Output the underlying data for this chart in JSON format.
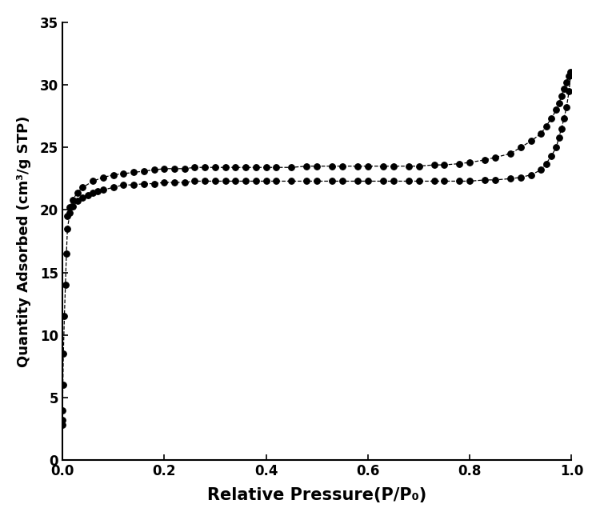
{
  "title": "",
  "xlabel": "Relative Pressure(P/P₀)",
  "ylabel": "Quantity Adsorbed (cm³/g STP)",
  "xlim": [
    0.0,
    1.0
  ],
  "ylim": [
    0,
    35
  ],
  "xticks": [
    0.0,
    0.2,
    0.4,
    0.6,
    0.8,
    1.0
  ],
  "yticks": [
    0,
    5,
    10,
    15,
    20,
    25,
    30,
    35
  ],
  "background_color": "#ffffff",
  "line_color": "#000000",
  "marker": "o",
  "markersize": 5.5,
  "linewidth": 0.9,
  "linestyle": "--",
  "adsorption_x": [
    8e-05,
    0.0002,
    0.0005,
    0.001,
    0.002,
    0.004,
    0.006,
    0.008,
    0.01,
    0.015,
    0.02,
    0.03,
    0.04,
    0.05,
    0.06,
    0.07,
    0.08,
    0.1,
    0.12,
    0.14,
    0.16,
    0.18,
    0.2,
    0.22,
    0.24,
    0.26,
    0.28,
    0.3,
    0.32,
    0.34,
    0.36,
    0.38,
    0.4,
    0.42,
    0.45,
    0.48,
    0.5,
    0.53,
    0.55,
    0.58,
    0.6,
    0.63,
    0.65,
    0.68,
    0.7,
    0.73,
    0.75,
    0.78,
    0.8,
    0.83,
    0.85,
    0.88,
    0.9,
    0.92,
    0.94,
    0.95,
    0.96,
    0.97,
    0.975,
    0.98,
    0.985,
    0.99,
    0.995,
    0.998
  ],
  "adsorption_y": [
    2.8,
    3.2,
    4.0,
    6.0,
    8.5,
    11.5,
    14.0,
    16.5,
    18.5,
    19.8,
    20.3,
    20.7,
    21.0,
    21.2,
    21.4,
    21.5,
    21.6,
    21.8,
    22.0,
    22.0,
    22.1,
    22.1,
    22.2,
    22.2,
    22.2,
    22.3,
    22.3,
    22.3,
    22.3,
    22.3,
    22.3,
    22.3,
    22.3,
    22.3,
    22.3,
    22.3,
    22.3,
    22.3,
    22.3,
    22.3,
    22.3,
    22.3,
    22.3,
    22.3,
    22.3,
    22.3,
    22.3,
    22.3,
    22.3,
    22.4,
    22.4,
    22.5,
    22.6,
    22.8,
    23.2,
    23.7,
    24.3,
    25.0,
    25.8,
    26.5,
    27.3,
    28.2,
    29.5,
    30.8
  ],
  "desorption_x": [
    0.998,
    0.995,
    0.99,
    0.985,
    0.98,
    0.975,
    0.97,
    0.96,
    0.95,
    0.94,
    0.92,
    0.9,
    0.88,
    0.85,
    0.83,
    0.8,
    0.78,
    0.75,
    0.73,
    0.7,
    0.68,
    0.65,
    0.63,
    0.6,
    0.58,
    0.55,
    0.53,
    0.5,
    0.48,
    0.45,
    0.42,
    0.4,
    0.38,
    0.36,
    0.34,
    0.32,
    0.3,
    0.28,
    0.26,
    0.24,
    0.22,
    0.2,
    0.18,
    0.16,
    0.14,
    0.12,
    0.1,
    0.08,
    0.06,
    0.04,
    0.03,
    0.02,
    0.015,
    0.01
  ],
  "desorption_y": [
    31.0,
    30.7,
    30.2,
    29.7,
    29.1,
    28.5,
    28.0,
    27.3,
    26.7,
    26.1,
    25.5,
    25.0,
    24.5,
    24.2,
    24.0,
    23.8,
    23.7,
    23.6,
    23.6,
    23.5,
    23.5,
    23.5,
    23.5,
    23.5,
    23.5,
    23.5,
    23.5,
    23.5,
    23.5,
    23.4,
    23.4,
    23.4,
    23.4,
    23.4,
    23.4,
    23.4,
    23.4,
    23.4,
    23.4,
    23.3,
    23.3,
    23.3,
    23.2,
    23.1,
    23.0,
    22.9,
    22.8,
    22.6,
    22.3,
    21.8,
    21.4,
    20.8,
    20.2,
    19.5
  ]
}
